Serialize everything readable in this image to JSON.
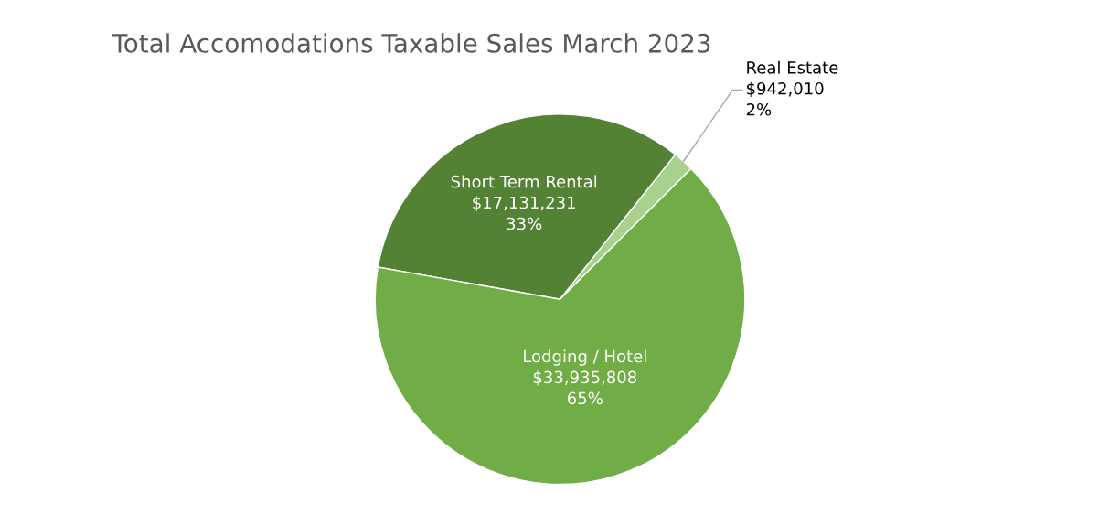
{
  "chart_data": {
    "type": "pie",
    "title": "Total Accomodations Taxable Sales March 2023",
    "categories": [
      "Short Term Rental",
      "Real Estate",
      "Lodging / Hotel"
    ],
    "values": [
      17131231,
      942010,
      33935808
    ],
    "colors": [
      "#548235",
      "#a9d18e",
      "#70ad47"
    ],
    "value_labels": [
      "$17,131,231\n33%",
      "$942,010\n2%",
      "$33,935,808\n65%"
    ],
    "legend": false
  }
}
